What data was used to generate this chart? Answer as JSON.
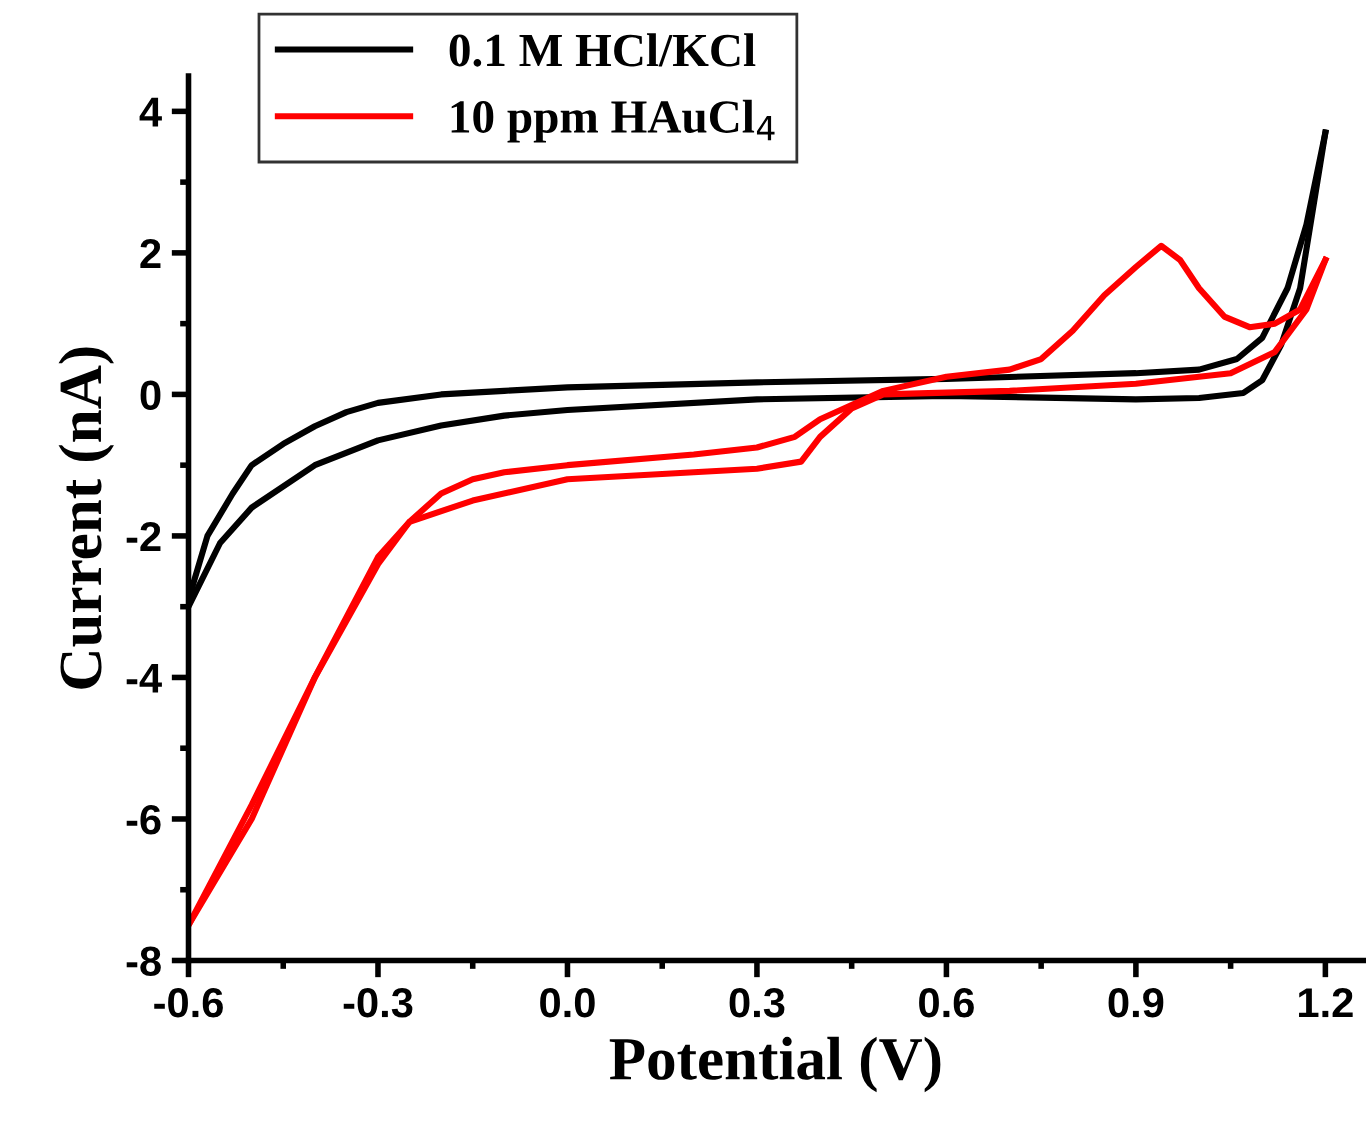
{
  "chart_data": {
    "type": "line",
    "xlabel": "Potential (V)",
    "ylabel": "Current (nA)",
    "xlim": [
      -0.6,
      1.26
    ],
    "ylim": [
      -8,
      4.5
    ],
    "xticks": [
      -0.6,
      -0.3,
      {
        "value": 0,
        "label": "0.0"
      },
      0.3,
      0.6,
      0.9,
      1.2
    ],
    "yticks": [
      -8,
      -6,
      -4,
      -2,
      0,
      2,
      4
    ],
    "grid": false,
    "legend": "top left",
    "marker": "none",
    "line_style": "solid",
    "series": [
      {
        "name": "0.1 M HCl/KCl",
        "color": "#000000",
        "x": [
          -0.6,
          -0.57,
          -0.53,
          -0.5,
          -0.45,
          -0.4,
          -0.35,
          -0.3,
          -0.2,
          -0.1,
          0.0,
          0.3,
          0.6,
          0.9,
          1.0,
          1.06,
          1.1,
          1.14,
          1.17,
          1.2
        ],
        "values": [
          -2.9,
          -2.0,
          -1.4,
          -1.0,
          -0.7,
          -0.45,
          -0.25,
          -0.12,
          0.0,
          0.05,
          0.1,
          0.17,
          0.22,
          0.3,
          0.35,
          0.5,
          0.8,
          1.5,
          2.4,
          3.7
        ]
      },
      {
        "color": "#000000",
        "x": [
          1.2,
          1.18,
          1.16,
          1.13,
          1.1,
          1.07,
          1.0,
          0.9,
          0.6,
          0.3,
          0.0,
          -0.1,
          -0.2,
          -0.3,
          -0.4,
          -0.5,
          -0.55,
          -0.6
        ],
        "values": [
          3.7,
          2.6,
          1.5,
          0.7,
          0.2,
          0.02,
          -0.05,
          -0.07,
          -0.02,
          -0.07,
          -0.22,
          -0.3,
          -0.44,
          -0.65,
          -1.0,
          -1.6,
          -2.1,
          -3.0
        ]
      },
      {
        "name": "10 ppm HAuCl$_{4}$",
        "color": "#ff0000",
        "x": [
          -0.6,
          -0.5,
          -0.4,
          -0.3,
          -0.25,
          -0.2,
          -0.15,
          -0.1,
          0.0,
          0.2,
          0.3,
          0.36,
          0.4,
          0.45,
          0.5,
          0.6,
          0.7,
          0.75,
          0.8,
          0.85,
          0.9,
          0.94,
          0.97,
          1.0,
          1.04,
          1.08,
          1.12,
          1.16,
          1.2
        ],
        "values": [
          -7.5,
          -5.8,
          -4.0,
          -2.4,
          -1.8,
          -1.4,
          -1.2,
          -1.1,
          -1.0,
          -0.85,
          -0.75,
          -0.6,
          -0.35,
          -0.15,
          0.05,
          0.25,
          0.35,
          0.5,
          0.9,
          1.4,
          1.8,
          2.1,
          1.9,
          1.5,
          1.1,
          0.95,
          1.0,
          1.2,
          1.9
        ]
      },
      {
        "color": "#ff0000",
        "x": [
          1.2,
          1.17,
          1.12,
          1.05,
          0.9,
          0.7,
          0.5,
          0.45,
          0.4,
          0.37,
          0.3,
          0.2,
          0.0,
          -0.15,
          -0.25,
          -0.3,
          -0.4,
          -0.5,
          -0.6
        ],
        "values": [
          1.9,
          1.2,
          0.6,
          0.3,
          0.15,
          0.05,
          0.0,
          -0.2,
          -0.6,
          -0.95,
          -1.05,
          -1.1,
          -1.2,
          -1.5,
          -1.8,
          -2.3,
          -4.0,
          -6.0,
          -7.5
        ]
      }
    ]
  }
}
